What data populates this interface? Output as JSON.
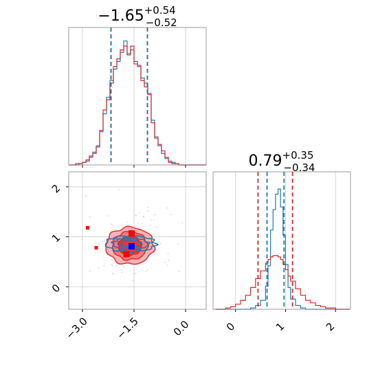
{
  "colors": {
    "red": "#d62728",
    "blue": "#1f77b4",
    "red_fill_light": "#f5b3b3",
    "red_fill_mid": "#ec7d7f",
    "red_fill_dark": "#e0383c",
    "grid": "#cccccc",
    "frame": "#7f7f7f"
  },
  "chart_data": [
    {
      "panel": "top-left",
      "type": "line",
      "style": "step histogram",
      "title": {
        "main": "−1.65",
        "sup": "+0.54",
        "sub": "−0.52"
      },
      "xlim": [
        -3.4,
        0.6
      ],
      "ylim": [
        0,
        1.0
      ],
      "grid": true,
      "x_ticks": [
        -3.0,
        -1.5,
        0.0
      ],
      "show_tick_labels": false,
      "x": [
        -3.4,
        -3.3,
        -3.2,
        -3.1,
        -3.0,
        -2.9,
        -2.8,
        -2.7,
        -2.6,
        -2.5,
        -2.4,
        -2.3,
        -2.2,
        -2.1,
        -2.0,
        -1.9,
        -1.8,
        -1.7,
        -1.6,
        -1.5,
        -1.4,
        -1.3,
        -1.2,
        -1.1,
        -1.0,
        -0.9,
        -0.8,
        -0.7,
        -0.6,
        -0.5,
        -0.4,
        -0.3,
        -0.2,
        -0.1,
        0.0,
        0.1,
        0.2,
        0.3,
        0.4,
        0.5
      ],
      "series": [
        {
          "name": "",
          "color": "#1f77b4",
          "values": [
            0.0,
            0.0,
            0.0,
            0.01,
            0.02,
            0.04,
            0.06,
            0.1,
            0.15,
            0.26,
            0.4,
            0.53,
            0.66,
            0.75,
            0.81,
            0.88,
            0.97,
            0.86,
            0.9,
            0.81,
            0.78,
            0.68,
            0.64,
            0.56,
            0.35,
            0.22,
            0.15,
            0.09,
            0.05,
            0.03,
            0.02,
            0.01,
            0.0,
            0.0,
            0.0,
            0.0,
            0.0,
            0.0,
            0.0,
            0.0
          ]
        },
        {
          "name": "",
          "color": "#d62728",
          "values": [
            0.0,
            0.0,
            0.01,
            0.01,
            0.02,
            0.03,
            0.07,
            0.09,
            0.14,
            0.27,
            0.43,
            0.51,
            0.64,
            0.77,
            0.83,
            0.9,
            0.93,
            0.87,
            0.93,
            0.79,
            0.77,
            0.66,
            0.61,
            0.55,
            0.33,
            0.21,
            0.16,
            0.11,
            0.06,
            0.02,
            0.01,
            0.01,
            0.0,
            0.0,
            0.0,
            0.0,
            0.0,
            0.0,
            0.0,
            0.0
          ]
        }
      ],
      "quantile_lines": [
        {
          "color": "#d62728",
          "x": [
            -2.17,
            -1.11
          ]
        },
        {
          "color": "#1f77b4",
          "x": [
            -2.17,
            -1.11
          ]
        }
      ]
    },
    {
      "panel": "bottom-left",
      "type": "scatter",
      "style": "2D density contours",
      "xlim": [
        -3.4,
        0.6
      ],
      "ylim": [
        -0.45,
        2.3
      ],
      "grid": true,
      "x_ticks": [
        -3.0,
        -1.5,
        0.0
      ],
      "x_tick_labels": [
        "−3.0",
        "−1.5",
        "0.0"
      ],
      "y_ticks": [
        0,
        1,
        2
      ],
      "y_tick_labels": [
        "0",
        "1",
        "2"
      ],
      "red_contours": {
        "center": [
          -1.62,
          0.82
        ],
        "radii": [
          [
            1.39,
            0.74
          ],
          [
            1.02,
            0.56
          ],
          [
            0.68,
            0.38
          ]
        ]
      },
      "blue_contours": {
        "center": [
          -1.6,
          0.86
        ],
        "radii": [
          [
            1.45,
            0.32
          ],
          [
            1.05,
            0.22
          ],
          [
            0.6,
            0.14
          ]
        ]
      },
      "points": [
        {
          "color": "#d62728",
          "x": -1.57,
          "y": 1.07
        },
        {
          "color": "#d62728",
          "x": -1.72,
          "y": 0.65
        },
        {
          "color": "#1f77b4",
          "x": -1.57,
          "y": 0.81
        },
        {
          "color": "#d62728",
          "x": -2.85,
          "y": 1.18
        },
        {
          "color": "#d62728",
          "x": -2.6,
          "y": 0.78
        }
      ]
    },
    {
      "panel": "bottom-right",
      "type": "line",
      "style": "step histogram",
      "title": {
        "main": "0.79",
        "sup": "+0.35",
        "sub": "−0.34"
      },
      "xlim": [
        -0.45,
        2.3
      ],
      "ylim": [
        0,
        1.0
      ],
      "grid": true,
      "x_ticks": [
        0,
        1,
        2
      ],
      "x_tick_labels": [
        "0",
        "1",
        "2"
      ],
      "x": [
        -0.4,
        -0.3,
        -0.2,
        -0.1,
        0.0,
        0.1,
        0.2,
        0.3,
        0.4,
        0.5,
        0.6,
        0.65,
        0.7,
        0.75,
        0.8,
        0.85,
        0.9,
        0.95,
        1.0,
        1.05,
        1.1,
        1.2,
        1.3,
        1.4,
        1.5,
        1.6,
        1.7,
        1.8,
        1.9,
        2.0,
        2.1,
        2.2
      ],
      "series": [
        {
          "name": "",
          "color": "#1f77b4",
          "values": [
            0.0,
            0.0,
            0.0,
            0.0,
            0.0,
            0.0,
            0.0,
            0.01,
            0.03,
            0.07,
            0.18,
            0.34,
            0.62,
            0.78,
            0.9,
            0.94,
            0.8,
            0.58,
            0.35,
            0.17,
            0.08,
            0.03,
            0.01,
            0.0,
            0.0,
            0.0,
            0.0,
            0.0,
            0.0,
            0.0,
            0.0,
            0.0
          ]
        },
        {
          "name": "",
          "color": "#d62728",
          "values": [
            0.0,
            0.0,
            0.01,
            0.02,
            0.04,
            0.07,
            0.11,
            0.17,
            0.24,
            0.3,
            0.36,
            0.39,
            0.41,
            0.42,
            0.42,
            0.41,
            0.39,
            0.35,
            0.31,
            0.26,
            0.22,
            0.16,
            0.11,
            0.07,
            0.05,
            0.03,
            0.02,
            0.01,
            0.01,
            0.0,
            0.0,
            0.0
          ]
        }
      ],
      "quantile_lines": [
        {
          "color": "#d62728",
          "x": [
            0.45,
            1.14
          ]
        },
        {
          "color": "#1f77b4",
          "x": [
            0.63,
            0.97
          ]
        }
      ]
    }
  ]
}
